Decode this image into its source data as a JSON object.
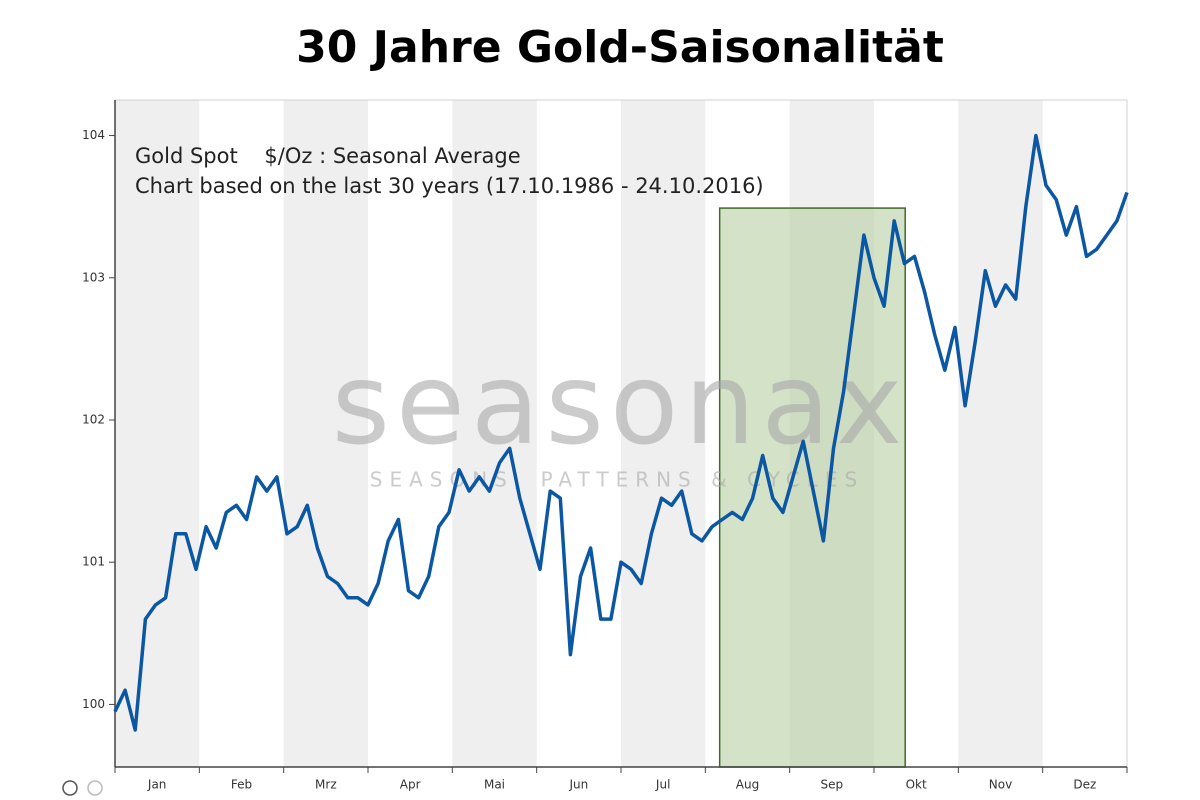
{
  "chart_data": {
    "type": "line",
    "title": "30 Jahre Gold-Saisonalität",
    "subtitle": [
      "Gold Spot    $/Oz : Seasonal Average",
      "Chart based on the last 30 years (17.10.1986 - 24.10.2016)"
    ],
    "watermark": [
      "seasonax",
      "SEASONS, PATTERNS & CYCLES"
    ],
    "categories": [
      "Jan",
      "Feb",
      "Mrz",
      "Apr",
      "Mai",
      "Jun",
      "Jul",
      "Aug",
      "Sep",
      "Okt",
      "Nov",
      "Dez"
    ],
    "xlim": [
      0,
      12
    ],
    "xticks": [
      0,
      1,
      2,
      3,
      4,
      5,
      6,
      7,
      8,
      9,
      10,
      11,
      12
    ],
    "ylim": [
      99.56,
      104.25
    ],
    "yticks": [
      100,
      101,
      102,
      103,
      104
    ],
    "grid": false,
    "band_color": "#efefef",
    "highlight": {
      "x": [
        7.17,
        9.37
      ],
      "top": 103.49,
      "color": "#b7cfa4"
    },
    "x": [
      0,
      0.12,
      0.24,
      0.36,
      0.48,
      0.6,
      0.72,
      0.84,
      0.96,
      1.08,
      1.2,
      1.32,
      1.44,
      1.56,
      1.68,
      1.8,
      1.92,
      2.04,
      2.16,
      2.28,
      2.4,
      2.52,
      2.64,
      2.76,
      2.88,
      3,
      3.12,
      3.24,
      3.36,
      3.48,
      3.6,
      3.72,
      3.84,
      3.96,
      4.08,
      4.2,
      4.32,
      4.44,
      4.56,
      4.68,
      4.8,
      4.92,
      5.04,
      5.16,
      5.28,
      5.4,
      5.52,
      5.64,
      5.76,
      5.88,
      6,
      6.12,
      6.24,
      6.36,
      6.48,
      6.6,
      6.72,
      6.84,
      6.96,
      7.08,
      7.2,
      7.32,
      7.44,
      7.56,
      7.68,
      7.8,
      7.92,
      8.04,
      8.16,
      8.28,
      8.4,
      8.52,
      8.64,
      8.76,
      8.88,
      9,
      9.12,
      9.24,
      9.36,
      9.48,
      9.6,
      9.72,
      9.84,
      9.96,
      10.08,
      10.2,
      10.32,
      10.44,
      10.56,
      10.68,
      10.8,
      10.92,
      11.04,
      11.16,
      11.28,
      11.4,
      11.52,
      11.64,
      11.76,
      11.88,
      12
    ],
    "series": [
      {
        "name": "Gold Spot",
        "color": "#0b57a4",
        "values": [
          99.95,
          100.1,
          99.82,
          100.6,
          100.7,
          100.75,
          101.2,
          101.2,
          100.95,
          101.25,
          101.1,
          101.35,
          101.4,
          101.3,
          101.6,
          101.5,
          101.6,
          101.2,
          101.25,
          101.4,
          101.1,
          100.9,
          100.85,
          100.75,
          100.75,
          100.7,
          100.85,
          101.15,
          101.3,
          100.8,
          100.75,
          100.9,
          101.25,
          101.35,
          101.65,
          101.5,
          101.6,
          101.5,
          101.7,
          101.8,
          101.45,
          101.2,
          100.95,
          101.5,
          101.45,
          100.35,
          100.9,
          101.1,
          100.6,
          100.6,
          101.0,
          100.95,
          100.85,
          101.2,
          101.45,
          101.4,
          101.5,
          101.2,
          101.15,
          101.25,
          101.3,
          101.35,
          101.3,
          101.45,
          101.75,
          101.45,
          101.35,
          101.6,
          101.85,
          101.5,
          101.15,
          101.8,
          102.2,
          102.75,
          103.3,
          103.0,
          102.8,
          103.4,
          103.1,
          103.15,
          102.9,
          102.6,
          102.35,
          102.65,
          102.1,
          102.55,
          103.05,
          102.8,
          102.95,
          102.85,
          103.5,
          104.0,
          103.65,
          103.55,
          103.3,
          103.5,
          103.15,
          103.2,
          103.3,
          103.4,
          103.6
        ]
      }
    ]
  }
}
